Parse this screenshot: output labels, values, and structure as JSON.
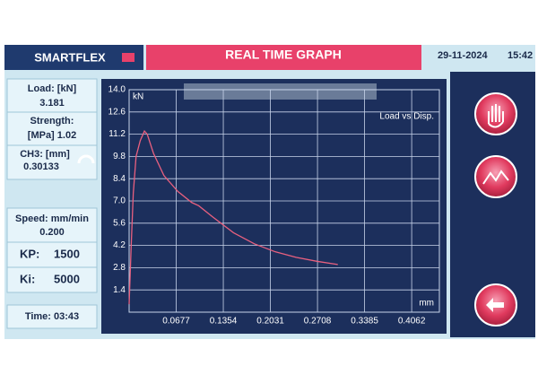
{
  "header": {
    "logo": "SMARTFLEX",
    "title": "REAL TIME GRAPH",
    "date": "29-11-2024",
    "time": "15:42"
  },
  "readouts": {
    "load": {
      "label": "Load: [kN]",
      "value": "3.181"
    },
    "strength": {
      "label": "Strength:",
      "value": "[MPa] 1.02"
    },
    "ch3": {
      "label": "CH3: [mm]",
      "value": "0.30133"
    },
    "speed": {
      "label": "Speed: mm/min",
      "value": "0.200"
    },
    "kp": {
      "label": "KP:",
      "value": "1500"
    },
    "ki": {
      "label": "Ki:",
      "value": "5000"
    },
    "time": {
      "label": "Time: 03:43"
    }
  },
  "chart_data": {
    "type": "line",
    "x_label": "mm",
    "y_label": "kN",
    "xlim": [
      0,
      0.446
    ],
    "ylim": [
      0,
      14
    ],
    "xticks": [
      0.0677,
      0.1354,
      0.2031,
      0.2708,
      0.3385,
      0.4062
    ],
    "yticks": [
      {
        "value": 14,
        "label": "14.0"
      },
      12.6,
      11.2,
      9.8,
      8.4,
      {
        "value": 7,
        "label": "7.0"
      },
      5.6,
      4.2,
      2.8,
      1.4
    ],
    "grid": true,
    "x": [
      0,
      0.003,
      0.006,
      0.01,
      0.016,
      0.022,
      0.026,
      0.035,
      0.05,
      0.07,
      0.09,
      0.1,
      0.12,
      0.15,
      0.18,
      0.21,
      0.24,
      0.27,
      0.3
    ],
    "series": [
      {
        "name": "Load vs Disp.",
        "color": "#e8607f",
        "values": [
          0.5,
          4.2,
          7.5,
          9.8,
          10.8,
          11.4,
          11.2,
          10,
          8.6,
          7.6,
          6.9,
          6.7,
          6,
          5,
          4.3,
          3.8,
          3.45,
          3.2,
          3.0
        ]
      }
    ]
  }
}
